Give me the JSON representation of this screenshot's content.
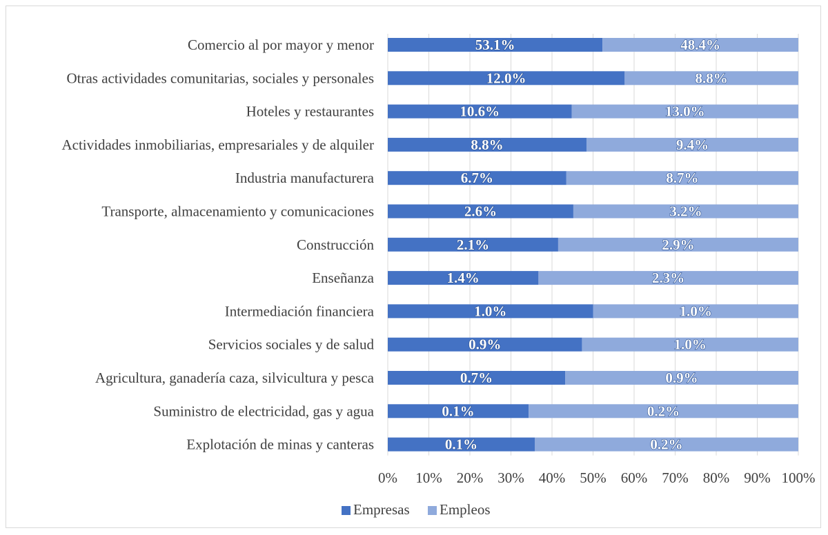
{
  "chart_data": {
    "type": "bar",
    "orientation": "horizontal",
    "stacked": "100%",
    "categories": [
      "Comercio al por mayor y menor",
      "Otras actividades comunitarias, sociales y personales",
      "Hoteles y restaurantes",
      "Actividades inmobiliarias, empresariales y de alquiler",
      "Industria manufacturera",
      "Transporte, almacenamiento y comunicaciones",
      "Construcción",
      "Enseñanza",
      "Intermediación financiera",
      "Servicios sociales y de salud",
      "Agricultura, ganadería caza, silvicultura y pesca",
      "Suministro de electricidad, gas y agua",
      "Explotación de minas y canteras"
    ],
    "series": [
      {
        "name": "Empresas",
        "color": "#4472c4",
        "values": [
          53.1,
          12.0,
          10.6,
          8.8,
          6.7,
          2.6,
          2.1,
          1.4,
          1.0,
          0.9,
          0.7,
          0.1,
          0.1
        ],
        "labels": [
          "53.1%",
          "12.0%",
          "10.6%",
          "8.8%",
          "6.7%",
          "2.6%",
          "2.1%",
          "1.4%",
          "1.0%",
          "0.9%",
          "0.7%",
          "0.1%",
          "0.1%"
        ]
      },
      {
        "name": "Empleos",
        "color": "#8faadc",
        "values": [
          48.4,
          8.8,
          13.0,
          9.4,
          8.7,
          3.2,
          2.9,
          2.3,
          1.0,
          1.0,
          0.9,
          0.2,
          0.2
        ],
        "labels": [
          "48.4%",
          "8.8%",
          "13.0%",
          "9.4%",
          "8.7%",
          "3.2%",
          "2.9%",
          "2.3%",
          "1.0%",
          "1.0%",
          "0.9%",
          "0.2%",
          "0.2%"
        ]
      }
    ],
    "xlim": [
      0,
      100
    ],
    "xticks": [
      "0%",
      "10%",
      "20%",
      "30%",
      "40%",
      "50%",
      "60%",
      "70%",
      "80%",
      "90%",
      "100%"
    ],
    "grid": true,
    "legend": "bottom",
    "empresas_share_of_row": [
      52.3,
      57.7,
      44.8,
      48.4,
      43.5,
      45.2,
      41.5,
      36.7,
      50.0,
      47.3,
      43.2,
      34.3,
      35.8
    ]
  }
}
